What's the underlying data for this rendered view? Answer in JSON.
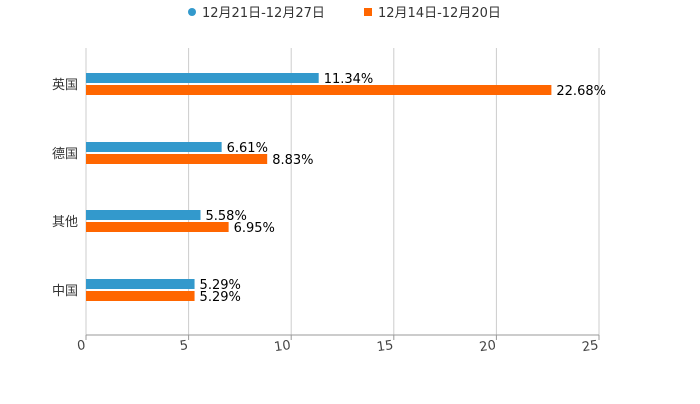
{
  "chart_data": {
    "type": "bar",
    "orientation": "horizontal",
    "title": "",
    "xlabel": "",
    "ylabel": "",
    "categories": [
      "英国",
      "德国",
      "其他",
      "中国"
    ],
    "series": [
      {
        "name": "12月21日-12月27日",
        "color": "#3399cc",
        "values": [
          11.34,
          6.61,
          5.58,
          5.29
        ],
        "labels": [
          "11.34%",
          "6.61%",
          "5.58%",
          "5.29%"
        ]
      },
      {
        "name": "12月14日-12月20日",
        "color": "#ff6600",
        "values": [
          22.68,
          8.83,
          6.95,
          5.29
        ],
        "labels": [
          "22.68%",
          "8.83%",
          "6.95%",
          "5.29%"
        ]
      }
    ],
    "xlim": [
      0,
      25
    ],
    "xticks": [
      "0",
      "5",
      "10",
      "15",
      "20",
      "25"
    ],
    "grid": true,
    "legend": "top-center"
  }
}
